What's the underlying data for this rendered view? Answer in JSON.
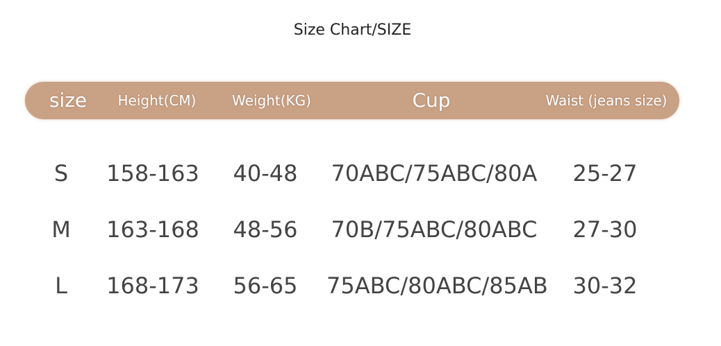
{
  "title": "Size Chart/SIZE",
  "header": {
    "size": "size",
    "height": "Height(CM)",
    "weight": "Weight(KG)",
    "cup": "Cup",
    "waist": "Waist (jeans size)"
  },
  "rows": [
    {
      "size": "S",
      "height": "158-163",
      "weight": "40-48",
      "cup": "70ABC/75ABC/80A",
      "waist": "25-27"
    },
    {
      "size": "M",
      "height": "163-168",
      "weight": "48-56",
      "cup": "70B/75ABC/80ABC",
      "waist": "27-30"
    },
    {
      "size": "L",
      "height": "168-173",
      "weight": "56-65",
      "cup": "75ABC/80ABC/85AB",
      "waist": "30-32"
    }
  ],
  "colors": {
    "header_bar": "#c9a185",
    "header_text": "#ffffff",
    "body_text": "#444444"
  }
}
